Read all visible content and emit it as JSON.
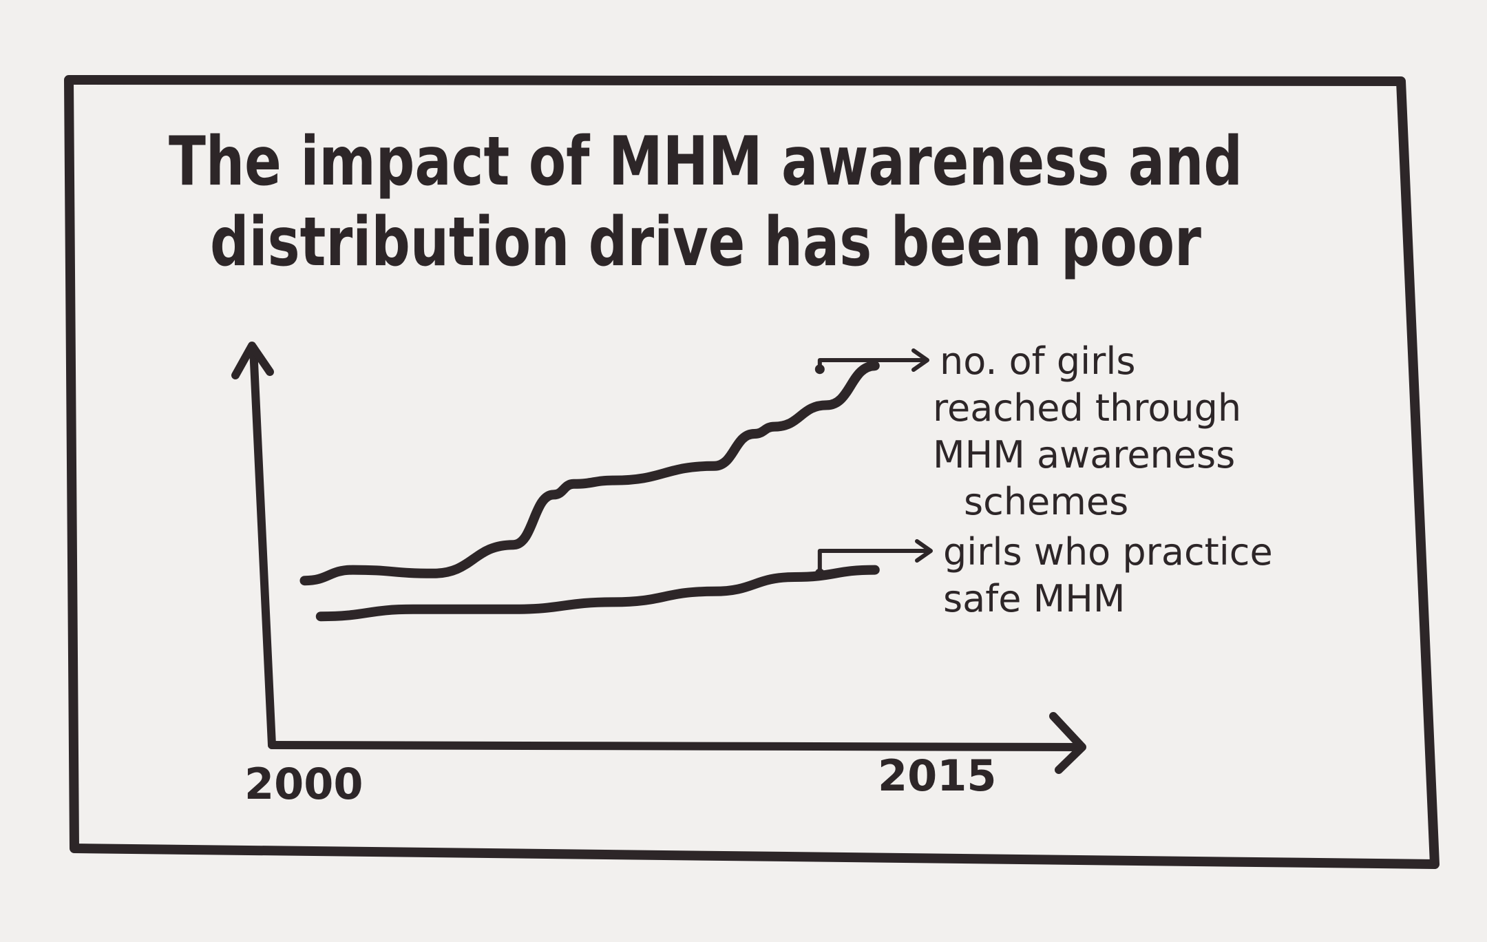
{
  "chart_data": {
    "type": "line",
    "title": "The impact of MHM awareness and distribution drive has been poor",
    "title_lines": [
      "The impact of MHM awareness and",
      "distribution drive has been poor"
    ],
    "x_tick_labels": [
      "2000",
      "2015"
    ],
    "xlim": [
      2000,
      2015
    ],
    "grid": false,
    "legend": "right, arrow-annotated",
    "series": [
      {
        "name": "no. of girls reached through MHM awareness schemes",
        "label_lines": [
          "no. of girls",
          "reached through",
          "MHM awareness",
          "schemes"
        ],
        "x": [
          2000.3,
          2001.5,
          2003.5,
          2005.5,
          2006.5,
          2007.0,
          2008.0,
          2010.5,
          2011.5,
          2012.0,
          2013.3,
          2014.5
        ],
        "y": [
          0.34,
          0.37,
          0.36,
          0.44,
          0.58,
          0.61,
          0.62,
          0.66,
          0.75,
          0.77,
          0.83,
          0.94
        ]
      },
      {
        "name": "girls who practice safe MHM",
        "label_lines": [
          "girls who practice",
          "safe MHM"
        ],
        "x": [
          2000.7,
          2003.0,
          2005.5,
          2008.0,
          2010.5,
          2012.5,
          2014.5
        ],
        "y": [
          0.24,
          0.26,
          0.26,
          0.28,
          0.31,
          0.35,
          0.37
        ]
      }
    ]
  }
}
